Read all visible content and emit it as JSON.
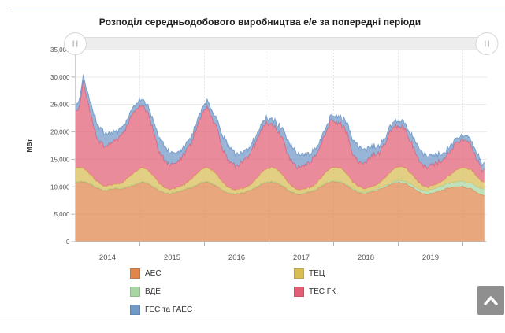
{
  "page": {
    "title": "Розподіл середньодобового виробництва е/е за попередні періоди",
    "scroll_top_button": {
      "icon": "chevron-up"
    }
  },
  "chart_data": {
    "type": "area",
    "stacked": true,
    "title": "Розподіл середньодобового виробництва е/е за попередні періоди",
    "xlabel": "",
    "ylabel": "МВт",
    "ylim": [
      0,
      35000
    ],
    "y_tick_step": 5000,
    "y_tick_labels": [
      "35,000",
      "30,000",
      "25,000",
      "20,000",
      "15,000",
      "10,000",
      "5,000",
      "0"
    ],
    "x_year_labels": [
      "2014",
      "2015",
      "2016",
      "2017",
      "2018",
      "2019"
    ],
    "x_start": "2014-01",
    "x_end": "2020-04",
    "points_per_year": 12,
    "grid": true,
    "legend_position": "bottom",
    "legend_columns": {
      "left": [
        0,
        1,
        4
      ],
      "right": [
        2,
        3
      ]
    },
    "navigator": {
      "left_handle": "drag",
      "right_handle": "drag"
    },
    "series": [
      {
        "name": "АЕС",
        "color": "#e0854b",
        "values": [
          10800,
          11000,
          10600,
          10000,
          9600,
          9300,
          9500,
          9700,
          9500,
          9900,
          10200,
          10500,
          10800,
          10500,
          10000,
          9300,
          8900,
          8700,
          8900,
          9200,
          9500,
          9800,
          10200,
          10700,
          10900,
          10400,
          10000,
          9300,
          8800,
          8600,
          8800,
          9000,
          9300,
          9800,
          10400,
          10800,
          10900,
          10600,
          10100,
          9400,
          8900,
          8600,
          8800,
          9000,
          9300,
          9900,
          10500,
          10900,
          11000,
          10700,
          10200,
          9500,
          9000,
          8700,
          8900,
          9200,
          9500,
          10000,
          10400,
          10800,
          10800,
          10500,
          10000,
          9200,
          8800,
          8600,
          8900,
          9200,
          9500,
          9800,
          10000,
          10100,
          9900,
          9600,
          9100,
          8500
        ]
      },
      {
        "name": "ВДЕ",
        "color": "#a8d6a2",
        "values": [
          100,
          100,
          100,
          100,
          100,
          100,
          100,
          100,
          100,
          100,
          100,
          100,
          100,
          100,
          100,
          100,
          100,
          100,
          100,
          100,
          100,
          100,
          100,
          100,
          100,
          100,
          100,
          100,
          100,
          100,
          100,
          100,
          100,
          100,
          100,
          100,
          120,
          120,
          120,
          120,
          120,
          120,
          120,
          120,
          120,
          120,
          120,
          120,
          150,
          150,
          180,
          200,
          220,
          230,
          230,
          240,
          250,
          260,
          280,
          300,
          350,
          400,
          450,
          500,
          600,
          650,
          700,
          750,
          800,
          850,
          900,
          950,
          1000,
          1050,
          1100,
          1150
        ]
      },
      {
        "name": "ТЕЦ",
        "color": "#d8bd55",
        "values": [
          2600,
          2400,
          1900,
          1300,
          900,
          700,
          700,
          700,
          900,
          1400,
          2000,
          2400,
          2500,
          2400,
          1900,
          1300,
          900,
          700,
          700,
          700,
          900,
          1400,
          2000,
          2400,
          2500,
          2400,
          1900,
          1300,
          900,
          700,
          700,
          700,
          900,
          1400,
          2000,
          2400,
          2500,
          2400,
          1900,
          1300,
          900,
          700,
          700,
          700,
          900,
          1400,
          2000,
          2400,
          2500,
          2400,
          1900,
          1300,
          900,
          700,
          700,
          700,
          900,
          1400,
          2000,
          2400,
          2500,
          2400,
          1900,
          1300,
          900,
          700,
          700,
          700,
          900,
          1400,
          2000,
          2400,
          2500,
          2400,
          1900,
          1300
        ]
      },
      {
        "name": "ТЕС ГК",
        "color": "#e25e76",
        "values": [
          10100,
          15700,
          12100,
          9000,
          7600,
          7300,
          7600,
          7900,
          8600,
          9400,
          10900,
          11400,
          11300,
          10400,
          8500,
          5900,
          5000,
          4600,
          4800,
          5100,
          5600,
          6600,
          8200,
          10200,
          10900,
          9500,
          8100,
          5800,
          5000,
          4500,
          4600,
          5100,
          5700,
          6700,
          7600,
          8400,
          7800,
          7300,
          6600,
          4800,
          4300,
          4100,
          4200,
          4600,
          5200,
          6100,
          7400,
          8600,
          8300,
          8000,
          7400,
          5400,
          4700,
          4400,
          5200,
          5700,
          5600,
          6300,
          7400,
          7700,
          7400,
          6700,
          5700,
          4300,
          3800,
          3600,
          3700,
          3900,
          4000,
          4300,
          4700,
          5200,
          5300,
          4400,
          3300,
          2200
        ]
      },
      {
        "name": "ГЕС та ГАЕС",
        "color": "#7099c7",
        "values": [
          1300,
          1100,
          1600,
          2500,
          2600,
          2400,
          1900,
          1500,
          1300,
          1100,
          1000,
          1000,
          1100,
          1200,
          1800,
          2700,
          2600,
          2300,
          1900,
          1500,
          1200,
          1100,
          1000,
          1000,
          1100,
          1200,
          1700,
          2600,
          2700,
          2400,
          1900,
          1500,
          1200,
          1000,
          900,
          900,
          1000,
          1100,
          1700,
          2600,
          2700,
          2400,
          1900,
          1500,
          1200,
          1000,
          900,
          900,
          1100,
          1200,
          1800,
          2700,
          2900,
          2600,
          2000,
          1500,
          1200,
          1000,
          900,
          900,
          1000,
          1100,
          1500,
          2200,
          2200,
          2000,
          1700,
          1400,
          1100,
          900,
          800,
          800,
          900,
          1000,
          1100,
          1200
        ]
      }
    ],
    "render": {
      "daily_noise": [
        120,
        15,
        90,
        450,
        130
      ],
      "fill_opacity": 0.72,
      "noise_seed": 42
    }
  }
}
